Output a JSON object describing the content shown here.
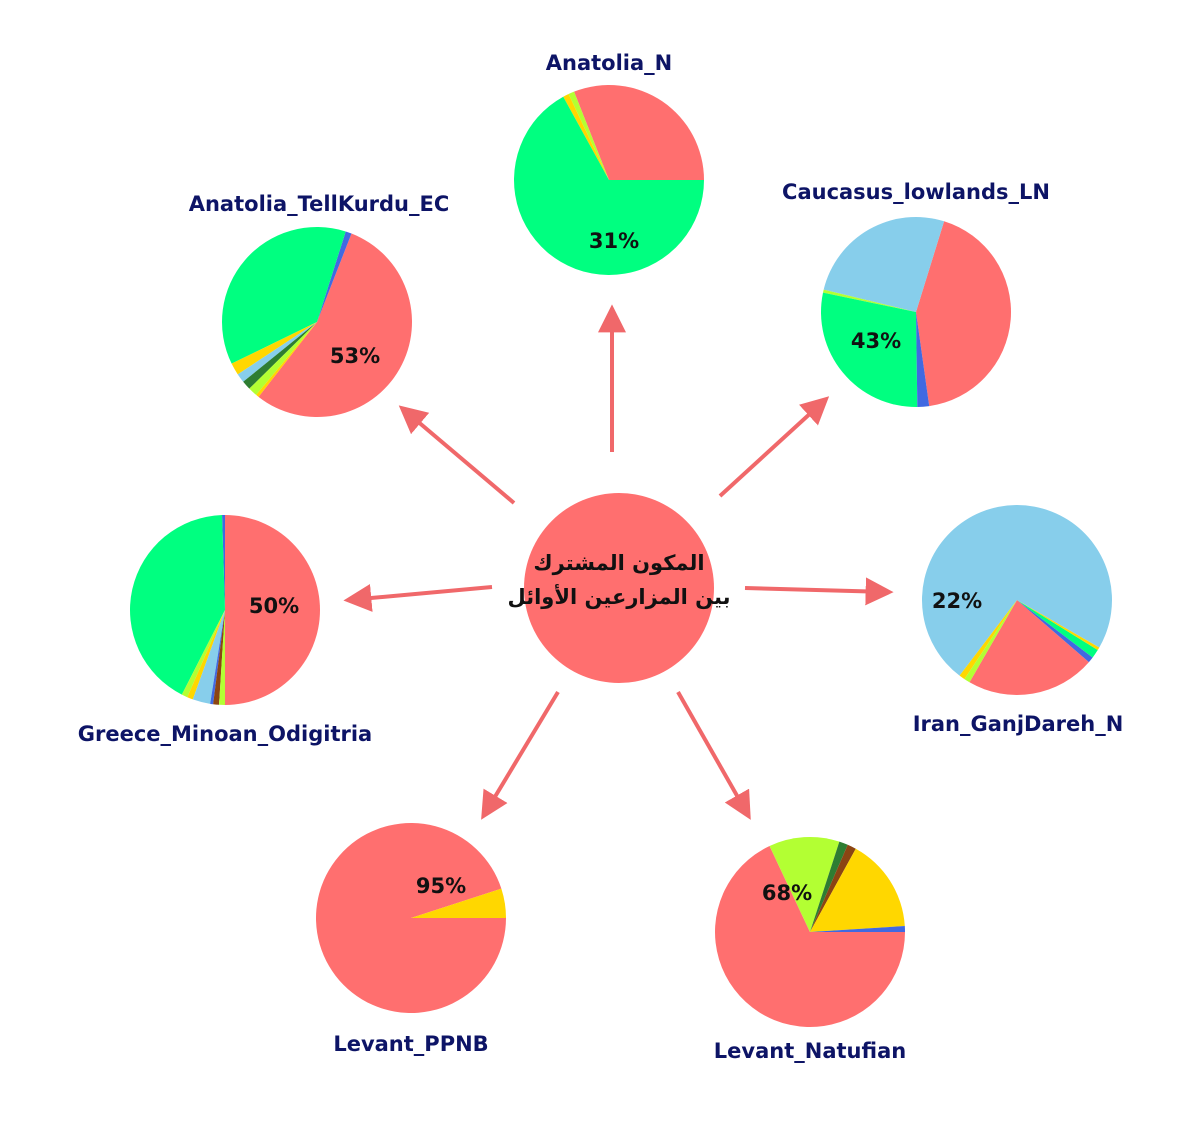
{
  "center": {
    "line1": "المكون المشترك",
    "line2": "بين المزارعين الأوائل",
    "color": "#ff6f6f"
  },
  "palette": {
    "red": "#ff6f6f",
    "green": "#00ff80",
    "lightblue": "#87ceeb",
    "blue": "#4169e1",
    "yellow": "#ffd700",
    "lime": "#b3ff33",
    "darkgreen": "#2e7d32",
    "brown": "#8b4513",
    "arrow": "#f0686a",
    "title": "#0d1466"
  },
  "chart_data": [
    {
      "type": "pie",
      "title": "Anatolia_N",
      "label": "31%",
      "slices": [
        {
          "color": "red",
          "value": 31
        },
        {
          "color": "lime",
          "value": 1
        },
        {
          "color": "yellow",
          "value": 1
        },
        {
          "color": "green",
          "value": 67
        }
      ]
    },
    {
      "type": "pie",
      "title": "Caucasus_lowlands_LN",
      "label": "43%",
      "slices": [
        {
          "color": "red",
          "value": 43
        },
        {
          "color": "lightblue",
          "value": 26
        },
        {
          "color": "lime",
          "value": 0.5
        },
        {
          "color": "green",
          "value": 28.5
        },
        {
          "color": "blue",
          "value": 2
        }
      ]
    },
    {
      "type": "pie",
      "title": "Iran_GanjDareh_N",
      "label": "22%",
      "slices": [
        {
          "color": "red",
          "value": 22
        },
        {
          "color": "blue",
          "value": 1
        },
        {
          "color": "green",
          "value": 1.5
        },
        {
          "color": "yellow",
          "value": 0.5
        },
        {
          "color": "lightblue",
          "value": 73
        },
        {
          "color": "yellow",
          "value": 1
        },
        {
          "color": "lime",
          "value": 1
        }
      ]
    },
    {
      "type": "pie",
      "title": "Levant_Natufian",
      "label": "68%",
      "slices": [
        {
          "color": "red",
          "value": 68
        },
        {
          "color": "lime",
          "value": 12
        },
        {
          "color": "darkgreen",
          "value": 1.5
        },
        {
          "color": "brown",
          "value": 1.5
        },
        {
          "color": "yellow",
          "value": 16
        },
        {
          "color": "blue",
          "value": 1
        }
      ]
    },
    {
      "type": "pie",
      "title": "Levant_PPNB",
      "label": "95%",
      "slices": [
        {
          "color": "red",
          "value": 95
        },
        {
          "color": "yellow",
          "value": 5
        }
      ]
    },
    {
      "type": "pie",
      "title": "Greece_Minoan_Odigitria",
      "label": "50%",
      "slices": [
        {
          "color": "red",
          "value": 50
        },
        {
          "color": "blue",
          "value": 0.5
        },
        {
          "color": "green",
          "value": 42
        },
        {
          "color": "lime",
          "value": 1
        },
        {
          "color": "yellow",
          "value": 1
        },
        {
          "color": "lightblue",
          "value": 3
        },
        {
          "color": "blue",
          "value": 0.5
        },
        {
          "color": "brown",
          "value": 1
        },
        {
          "color": "lime",
          "value": 1
        }
      ]
    },
    {
      "type": "pie",
      "title": "Anatolia_TellKurdu_EC",
      "label": "53%",
      "slices": [
        {
          "color": "red",
          "value": 53
        },
        {
          "color": "blue",
          "value": 1
        },
        {
          "color": "green",
          "value": 36
        },
        {
          "color": "yellow",
          "value": 2
        },
        {
          "color": "lightblue",
          "value": 1.5
        },
        {
          "color": "darkgreen",
          "value": 1.5
        },
        {
          "color": "lime",
          "value": 1.5
        },
        {
          "color": "yellow",
          "value": 0.5
        }
      ]
    }
  ]
}
